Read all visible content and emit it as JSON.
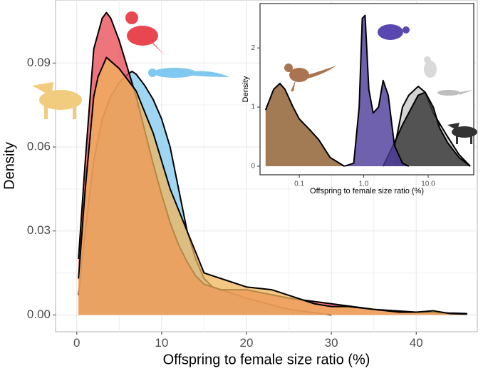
{
  "chart_data": [
    {
      "type": "area",
      "xlabel": "Offspring to female size ratio (%)",
      "ylabel": "Density",
      "xlim": [
        -2.5,
        47.2
      ],
      "ylim": [
        -0.006,
        0.1125
      ],
      "xticks": [
        0,
        10,
        20,
        30,
        40
      ],
      "yticks": [
        {
          "value": 0,
          "label": "0.00"
        },
        {
          "value": 0.03,
          "label": "0.03"
        },
        {
          "value": 0.06,
          "label": "0.06"
        },
        {
          "value": 0.09,
          "label": "0.09"
        }
      ],
      "grid": true,
      "xlog": false,
      "series": [
        {
          "color": "#7fc8ef",
          "x": [
            0.2,
            1,
            2,
            3,
            4,
            5,
            6,
            6.5,
            7,
            8,
            9,
            10,
            11,
            12,
            13,
            14,
            15,
            16,
            18,
            20,
            25,
            30
          ],
          "values": [
            0.007,
            0.03,
            0.055,
            0.07,
            0.078,
            0.083,
            0.086,
            0.087,
            0.086,
            0.082,
            0.077,
            0.07,
            0.06,
            0.045,
            0.03,
            0.02,
            0.013,
            0.01,
            0.008,
            0.006,
            0.002,
            0
          ]
        },
        {
          "color": "#e8474f",
          "x": [
            0.2,
            1,
            2,
            3,
            3.5,
            4,
            5,
            6,
            7,
            8,
            9,
            10,
            11,
            12,
            13,
            14,
            15,
            17,
            20,
            25,
            30,
            35,
            40,
            46
          ],
          "values": [
            0.02,
            0.055,
            0.095,
            0.106,
            0.108,
            0.106,
            0.098,
            0.088,
            0.078,
            0.066,
            0.054,
            0.043,
            0.033,
            0.025,
            0.019,
            0.014,
            0.011,
            0.009,
            0.009,
            0.006,
            0.004,
            0.002,
            0.001,
            0.0005
          ]
        },
        {
          "color": "#f0b45c",
          "x": [
            0.2,
            1,
            2,
            2.5,
            3.5,
            5,
            7,
            9,
            11,
            13,
            15,
            18,
            20,
            23,
            25,
            28,
            30,
            32,
            35,
            38,
            40,
            42,
            44,
            46
          ],
          "values": [
            0.013,
            0.045,
            0.078,
            0.085,
            0.092,
            0.088,
            0.08,
            0.065,
            0.045,
            0.03,
            0.015,
            0.012,
            0.01,
            0.009,
            0.007,
            0.004,
            0.003,
            0.003,
            0.002,
            0.001,
            0.001,
            0.0015,
            0.0005,
            0.0003
          ]
        }
      ]
    },
    {
      "type": "area",
      "xlabel": "Offspring to female size ratio (%)",
      "ylabel": "Density",
      "xlim": [
        0.0246,
        51
      ],
      "ylim": [
        -0.145,
        2.75
      ],
      "xticks": [
        0.1,
        {
          "value": 1,
          "label": "1.0"
        },
        {
          "value": 10,
          "label": "10.0"
        }
      ],
      "yticks": [
        0,
        1,
        2
      ],
      "grid": false,
      "xlog": true,
      "series": [
        {
          "color": "#8b5a2b",
          "x": [
            0.03,
            0.04,
            0.05,
            0.06,
            0.08,
            0.1,
            0.15,
            0.2,
            0.3,
            0.5
          ],
          "values": [
            0.95,
            1.3,
            1.4,
            1.3,
            1.0,
            0.8,
            0.6,
            0.45,
            0.15,
            0
          ]
        },
        {
          "color": "#c8c8c8",
          "x": [
            3,
            4,
            5,
            7,
            9,
            12,
            20,
            30,
            45
          ],
          "values": [
            0.3,
            1.0,
            1.2,
            1.35,
            1.25,
            0.9,
            0.5,
            0.2,
            0
          ]
        },
        {
          "color": "#333333",
          "x": [
            2,
            3,
            4,
            5,
            7,
            9,
            12,
            15,
            20,
            30,
            45
          ],
          "values": [
            0,
            0.4,
            0.7,
            0.9,
            1.2,
            1.25,
            1.0,
            0.65,
            0.4,
            0.15,
            0
          ]
        },
        {
          "color": "#4b3a9a",
          "x": [
            0.5,
            0.7,
            0.85,
            0.95,
            1.05,
            1.2,
            1.4,
            1.7,
            2,
            2.4,
            3,
            4,
            5
          ],
          "values": [
            0,
            0.05,
            1.0,
            2.5,
            2.55,
            1.3,
            0.9,
            1.0,
            1.45,
            1.2,
            0.35,
            0.05,
            0
          ]
        }
      ]
    }
  ]
}
